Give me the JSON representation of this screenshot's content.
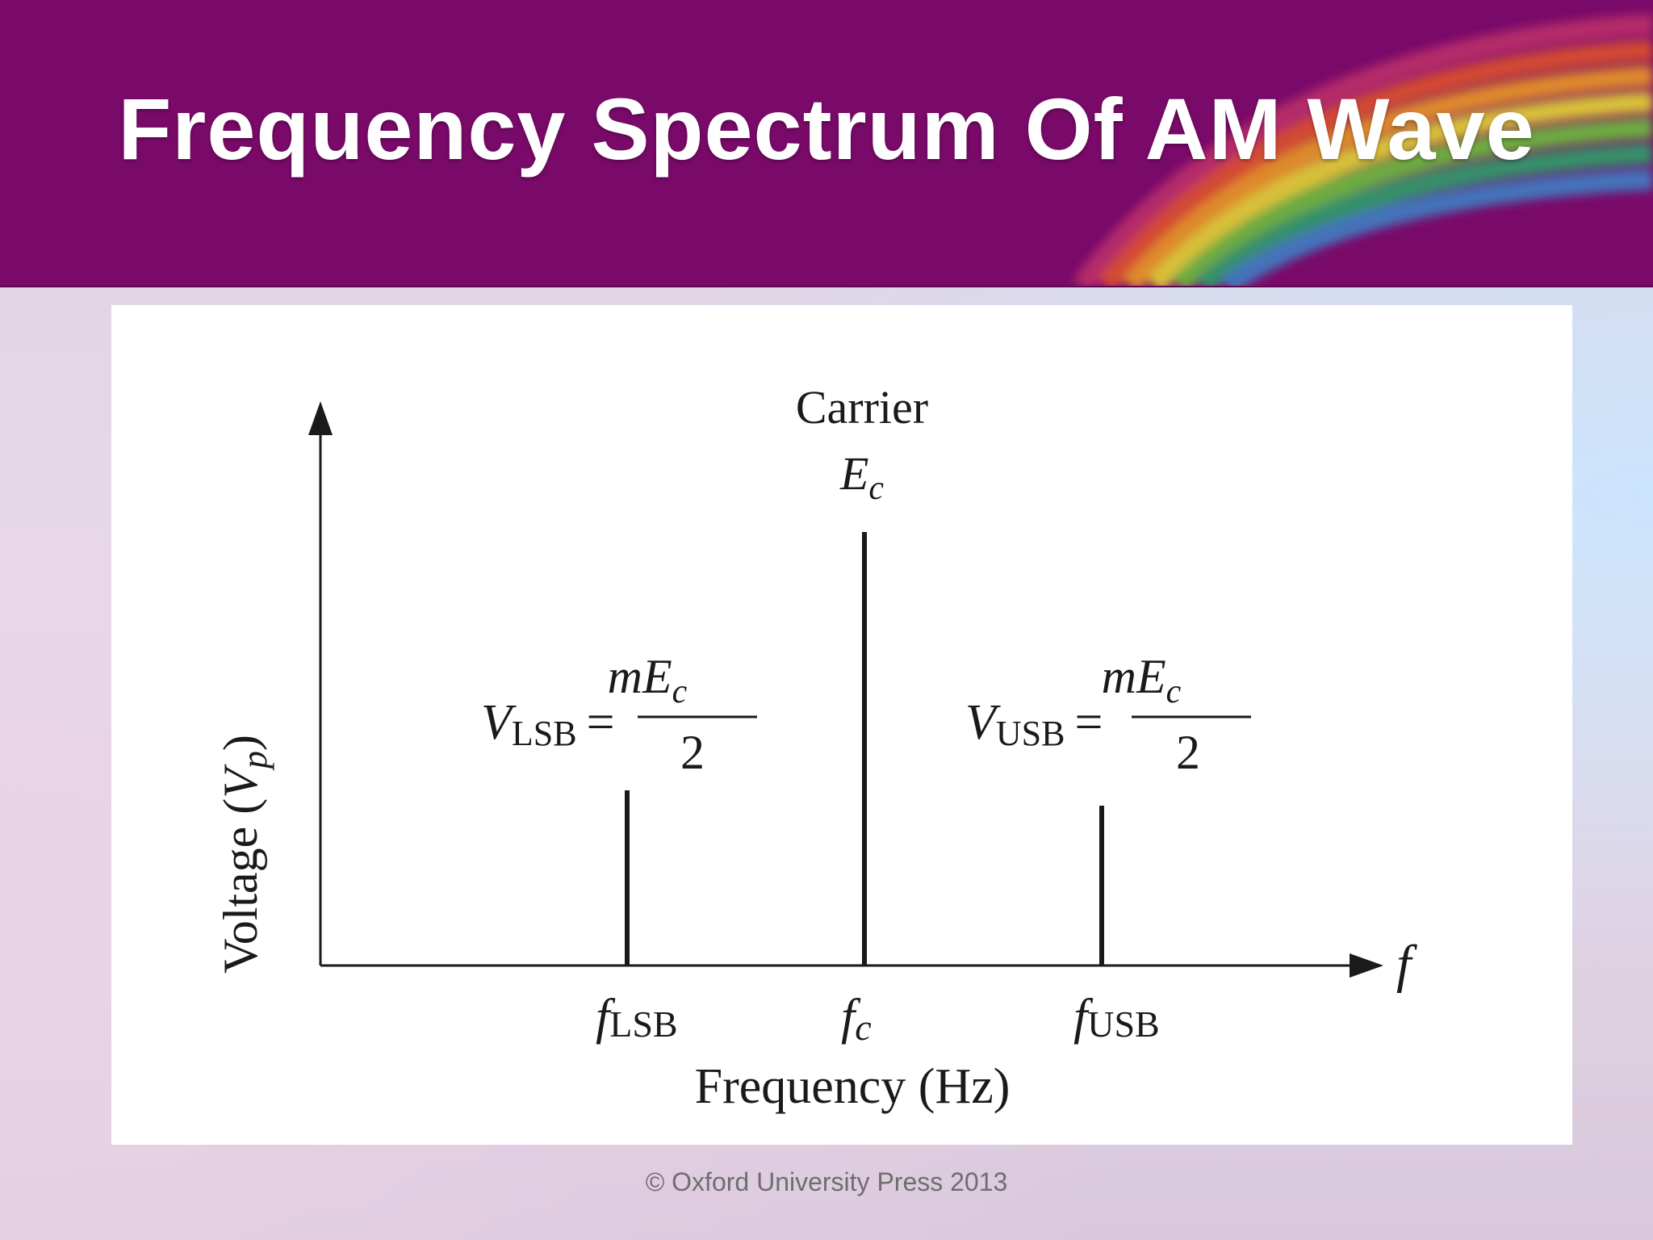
{
  "slide": {
    "title": "Frequency Spectrum Of AM Wave",
    "copyright": "© Oxford University Press 2013"
  },
  "diagram": {
    "y_axis_label": {
      "main": "Voltage (",
      "var": "V",
      "sub": "p",
      "close": ")"
    },
    "x_axis_label": "Frequency (Hz)",
    "x_axis_symbol": "f",
    "carrier": {
      "label": "Carrier",
      "amp_var": "E",
      "amp_sub": "c"
    },
    "lsb": {
      "eq_var": "V",
      "eq_sub": "LSB",
      "eq_sign": "=",
      "numerator_m": "m",
      "numerator_E": "E",
      "numerator_sub": "c",
      "denominator": "2",
      "tick_var": "f",
      "tick_sub": "LSB"
    },
    "usb": {
      "eq_var": "V",
      "eq_sub": "USB",
      "eq_sign": "=",
      "numerator_m": "m",
      "numerator_E": "E",
      "numerator_sub": "c",
      "denominator": "2",
      "tick_var": "f",
      "tick_sub": "USB"
    },
    "center_tick": {
      "var": "f",
      "sub": "c"
    }
  }
}
